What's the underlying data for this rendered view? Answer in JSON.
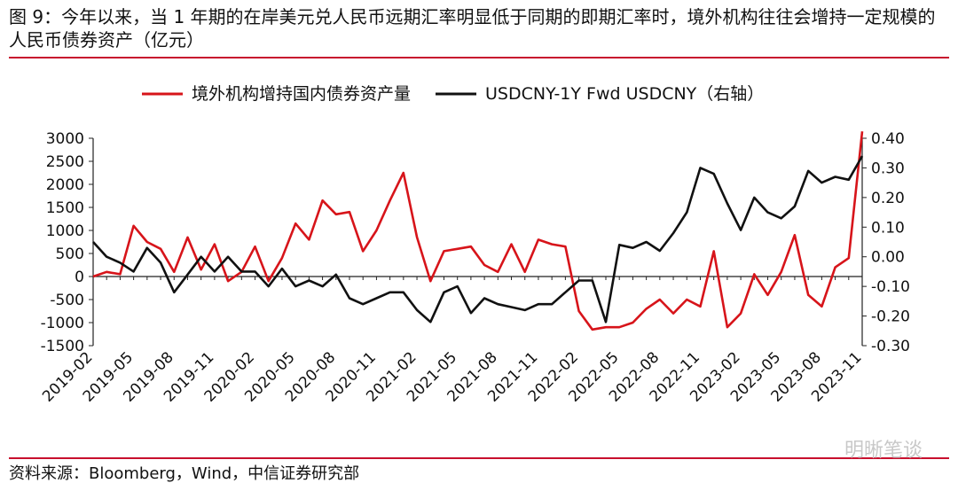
{
  "title": "图 9：今年以来，当 1 年期的在岸美元兑人民币远期汇率明显低于同期的即期汇率时，境外机构往往会增持一定规模的人民币债券资产（亿元）",
  "source": "资料来源：Bloomberg，Wind，中信证券研究部",
  "watermark": "明晰笔谈",
  "chart_data": {
    "type": "line",
    "x": [
      "2019-02",
      "2019-03",
      "2019-04",
      "2019-05",
      "2019-06",
      "2019-07",
      "2019-08",
      "2019-09",
      "2019-10",
      "2019-11",
      "2019-12",
      "2020-01",
      "2020-02",
      "2020-03",
      "2020-04",
      "2020-05",
      "2020-06",
      "2020-07",
      "2020-08",
      "2020-09",
      "2020-10",
      "2020-11",
      "2020-12",
      "2021-01",
      "2021-02",
      "2021-03",
      "2021-04",
      "2021-05",
      "2021-06",
      "2021-07",
      "2021-08",
      "2021-09",
      "2021-10",
      "2021-11",
      "2021-12",
      "2022-01",
      "2022-02",
      "2022-03",
      "2022-04",
      "2022-05",
      "2022-06",
      "2022-07",
      "2022-08",
      "2022-09",
      "2022-10",
      "2022-11",
      "2022-12",
      "2023-01",
      "2023-02",
      "2023-03",
      "2023-04",
      "2023-05",
      "2023-06",
      "2023-07",
      "2023-08",
      "2023-09",
      "2023-10",
      "2023-11"
    ],
    "tick_labels": [
      "2019-02",
      "2019-05",
      "2019-08",
      "2019-11",
      "2020-02",
      "2020-05",
      "2020-08",
      "2020-11",
      "2021-02",
      "2021-05",
      "2021-08",
      "2021-11",
      "2022-02",
      "2022-05",
      "2022-08",
      "2022-11",
      "2023-02",
      "2023-05",
      "2023-08",
      "2023-11"
    ],
    "series": [
      {
        "name": "境外机构增持国内债券资产量",
        "axis": "left",
        "color": "#d7141a",
        "values": [
          0,
          100,
          50,
          1100,
          750,
          600,
          100,
          850,
          150,
          700,
          -100,
          100,
          650,
          -100,
          400,
          1150,
          800,
          1650,
          1350,
          1400,
          550,
          1000,
          1650,
          2250,
          850,
          -100,
          550,
          600,
          650,
          250,
          100,
          700,
          100,
          800,
          700,
          650,
          -750,
          -1150,
          -1100,
          -1100,
          -1000,
          -700,
          -500,
          -800,
          -500,
          -650,
          550,
          -1100,
          -800,
          50,
          -400,
          100,
          900,
          -400,
          -650,
          200,
          400,
          3150
        ]
      },
      {
        "name": "USDCNY-1Y Fwd USDCNY（右轴）",
        "axis": "right",
        "color": "#111111",
        "values": [
          0.05,
          0.0,
          -0.02,
          -0.05,
          0.03,
          -0.02,
          -0.12,
          -0.06,
          0.0,
          -0.05,
          0.0,
          -0.05,
          -0.05,
          -0.1,
          -0.04,
          -0.1,
          -0.08,
          -0.1,
          -0.06,
          -0.14,
          -0.16,
          -0.14,
          -0.12,
          -0.12,
          -0.18,
          -0.22,
          -0.12,
          -0.1,
          -0.19,
          -0.14,
          -0.16,
          -0.17,
          -0.18,
          -0.16,
          -0.16,
          -0.12,
          -0.08,
          -0.08,
          -0.22,
          0.04,
          0.03,
          0.05,
          0.02,
          0.08,
          0.15,
          0.3,
          0.28,
          0.18,
          0.09,
          0.2,
          0.15,
          0.13,
          0.17,
          0.29,
          0.25,
          0.27,
          0.26,
          0.34
        ]
      }
    ],
    "left_axis": {
      "min": -1500,
      "max": 3000,
      "ticks": [
        "3000",
        "2500",
        "2000",
        "1500",
        "1000",
        "500",
        "0",
        "-500",
        "-1000",
        "-1500"
      ]
    },
    "right_axis": {
      "min": -0.3,
      "max": 0.4,
      "ticks": [
        "0.40",
        "0.30",
        "0.20",
        "0.10",
        "0.00",
        "-0.10",
        "-0.20",
        "-0.30"
      ]
    },
    "legend": {
      "position": "top-center"
    },
    "grid": false
  }
}
